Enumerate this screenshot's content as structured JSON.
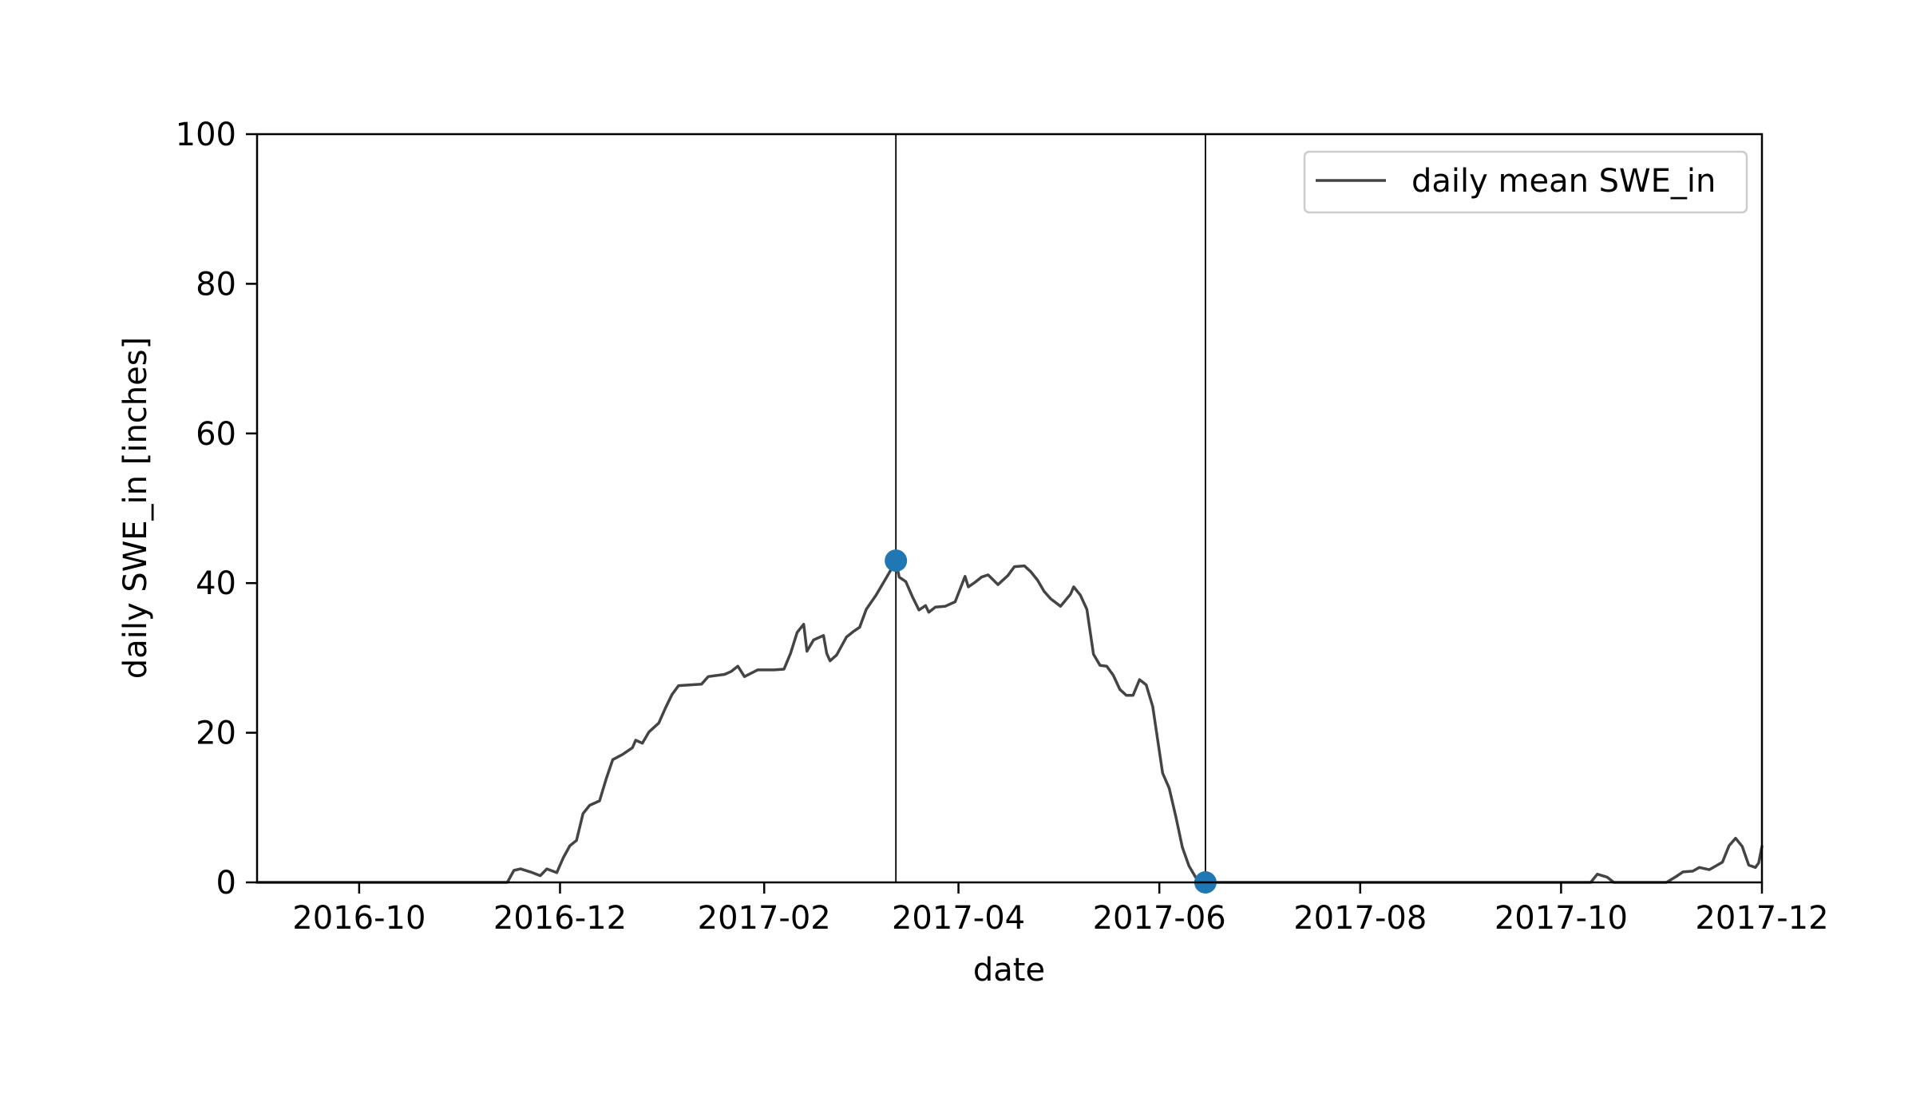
{
  "chart_data": {
    "type": "line",
    "title": "",
    "xlabel": "date",
    "ylabel": "daily SWE_in [inches]",
    "x_axis": "date",
    "xlim": [
      "2016-08-31",
      "2017-12-01"
    ],
    "ylim": [
      0,
      100
    ],
    "x_ticks": [
      "2016-10",
      "2016-12",
      "2017-02",
      "2017-04",
      "2017-06",
      "2017-08",
      "2017-10",
      "2017-12"
    ],
    "x_tick_dates": [
      "2016-10-01",
      "2016-12-01",
      "2017-02-01",
      "2017-04-01",
      "2017-06-01",
      "2017-08-01",
      "2017-10-01",
      "2017-12-01"
    ],
    "y_ticks": [
      0,
      20,
      40,
      60,
      80,
      100
    ],
    "grid": false,
    "legend": {
      "position": "top-right",
      "entries": [
        "daily mean SWE_in"
      ]
    },
    "series": [
      {
        "name": "daily mean SWE_in",
        "color": "#444444",
        "points": [
          [
            "2016-08-31",
            0
          ],
          [
            "2016-11-15",
            0
          ],
          [
            "2016-11-17",
            1.6
          ],
          [
            "2016-11-19",
            1.8
          ],
          [
            "2016-11-22",
            1.4
          ],
          [
            "2016-11-25",
            0.9
          ],
          [
            "2016-11-27",
            1.8
          ],
          [
            "2016-11-30",
            1.3
          ],
          [
            "2016-12-02",
            3.3
          ],
          [
            "2016-12-04",
            4.9
          ],
          [
            "2016-12-06",
            5.6
          ],
          [
            "2016-12-08",
            9.2
          ],
          [
            "2016-12-10",
            10.3
          ],
          [
            "2016-12-13",
            10.9
          ],
          [
            "2016-12-15",
            13.8
          ],
          [
            "2016-12-17",
            16.4
          ],
          [
            "2016-12-20",
            17.1
          ],
          [
            "2016-12-23",
            18.0
          ],
          [
            "2016-12-24",
            19.0
          ],
          [
            "2016-12-26",
            18.6
          ],
          [
            "2016-12-28",
            20.1
          ],
          [
            "2016-12-31",
            21.3
          ],
          [
            "2017-01-02",
            23.3
          ],
          [
            "2017-01-04",
            25.1
          ],
          [
            "2017-01-06",
            26.3
          ],
          [
            "2017-01-13",
            26.5
          ],
          [
            "2017-01-15",
            27.5
          ],
          [
            "2017-01-20",
            27.8
          ],
          [
            "2017-01-22",
            28.2
          ],
          [
            "2017-01-24",
            28.9
          ],
          [
            "2017-01-26",
            27.5
          ],
          [
            "2017-01-30",
            28.4
          ],
          [
            "2017-02-04",
            28.4
          ],
          [
            "2017-02-07",
            28.5
          ],
          [
            "2017-02-09",
            30.6
          ],
          [
            "2017-02-11",
            33.4
          ],
          [
            "2017-02-13",
            34.5
          ],
          [
            "2017-02-14",
            30.9
          ],
          [
            "2017-02-16",
            32.4
          ],
          [
            "2017-02-19",
            33.0
          ],
          [
            "2017-02-20",
            30.6
          ],
          [
            "2017-02-21",
            29.6
          ],
          [
            "2017-02-23",
            30.4
          ],
          [
            "2017-02-26",
            32.8
          ],
          [
            "2017-02-28",
            33.5
          ],
          [
            "2017-03-02",
            34.1
          ],
          [
            "2017-03-04",
            36.5
          ],
          [
            "2017-03-07",
            38.4
          ],
          [
            "2017-03-09",
            39.9
          ],
          [
            "2017-03-11",
            41.4
          ],
          [
            "2017-03-13",
            43.0
          ],
          [
            "2017-03-14",
            40.8
          ],
          [
            "2017-03-16",
            40.2
          ],
          [
            "2017-03-18",
            38.2
          ],
          [
            "2017-03-20",
            36.4
          ],
          [
            "2017-03-22",
            37.0
          ],
          [
            "2017-03-23",
            36.1
          ],
          [
            "2017-03-25",
            36.8
          ],
          [
            "2017-03-28",
            36.9
          ],
          [
            "2017-03-31",
            37.5
          ],
          [
            "2017-04-03",
            40.9
          ],
          [
            "2017-04-04",
            39.5
          ],
          [
            "2017-04-06",
            40.1
          ],
          [
            "2017-04-08",
            40.8
          ],
          [
            "2017-04-10",
            41.1
          ],
          [
            "2017-04-13",
            39.8
          ],
          [
            "2017-04-16",
            41.0
          ],
          [
            "2017-04-18",
            42.2
          ],
          [
            "2017-04-21",
            42.3
          ],
          [
            "2017-04-23",
            41.5
          ],
          [
            "2017-04-25",
            40.4
          ],
          [
            "2017-04-27",
            38.9
          ],
          [
            "2017-04-29",
            37.9
          ],
          [
            "2017-05-02",
            36.9
          ],
          [
            "2017-05-05",
            38.5
          ],
          [
            "2017-05-06",
            39.5
          ],
          [
            "2017-05-08",
            38.4
          ],
          [
            "2017-05-10",
            36.5
          ],
          [
            "2017-05-12",
            30.5
          ],
          [
            "2017-05-14",
            29.0
          ],
          [
            "2017-05-16",
            28.9
          ],
          [
            "2017-05-18",
            27.7
          ],
          [
            "2017-05-20",
            25.8
          ],
          [
            "2017-05-22",
            25.0
          ],
          [
            "2017-05-24",
            25.0
          ],
          [
            "2017-05-26",
            27.1
          ],
          [
            "2017-05-28",
            26.4
          ],
          [
            "2017-05-30",
            23.5
          ],
          [
            "2017-06-02",
            14.6
          ],
          [
            "2017-06-04",
            12.6
          ],
          [
            "2017-06-06",
            8.8
          ],
          [
            "2017-06-08",
            4.7
          ],
          [
            "2017-06-10",
            2.2
          ],
          [
            "2017-06-12",
            0.7
          ],
          [
            "2017-06-14",
            0.1
          ],
          [
            "2017-06-15",
            0
          ],
          [
            "2017-10-10",
            0
          ],
          [
            "2017-10-12",
            1.1
          ],
          [
            "2017-10-15",
            0.7
          ],
          [
            "2017-10-17",
            0
          ],
          [
            "2017-11-02",
            0
          ],
          [
            "2017-11-05",
            0.8
          ],
          [
            "2017-11-07",
            1.4
          ],
          [
            "2017-11-10",
            1.5
          ],
          [
            "2017-11-12",
            2.0
          ],
          [
            "2017-11-15",
            1.7
          ],
          [
            "2017-11-17",
            2.2
          ],
          [
            "2017-11-19",
            2.7
          ],
          [
            "2017-11-21",
            4.9
          ],
          [
            "2017-11-23",
            5.9
          ],
          [
            "2017-11-25",
            4.8
          ],
          [
            "2017-11-27",
            2.3
          ],
          [
            "2017-11-29",
            2.0
          ],
          [
            "2017-11-30",
            2.6
          ],
          [
            "2017-12-01",
            4.8
          ]
        ]
      }
    ],
    "markers": {
      "color": "#1f77b4",
      "points": [
        [
          "2017-03-13",
          43.0
        ],
        [
          "2017-06-15",
          0
        ]
      ]
    },
    "vertical_lines": [
      "2017-03-13",
      "2017-06-15"
    ]
  }
}
